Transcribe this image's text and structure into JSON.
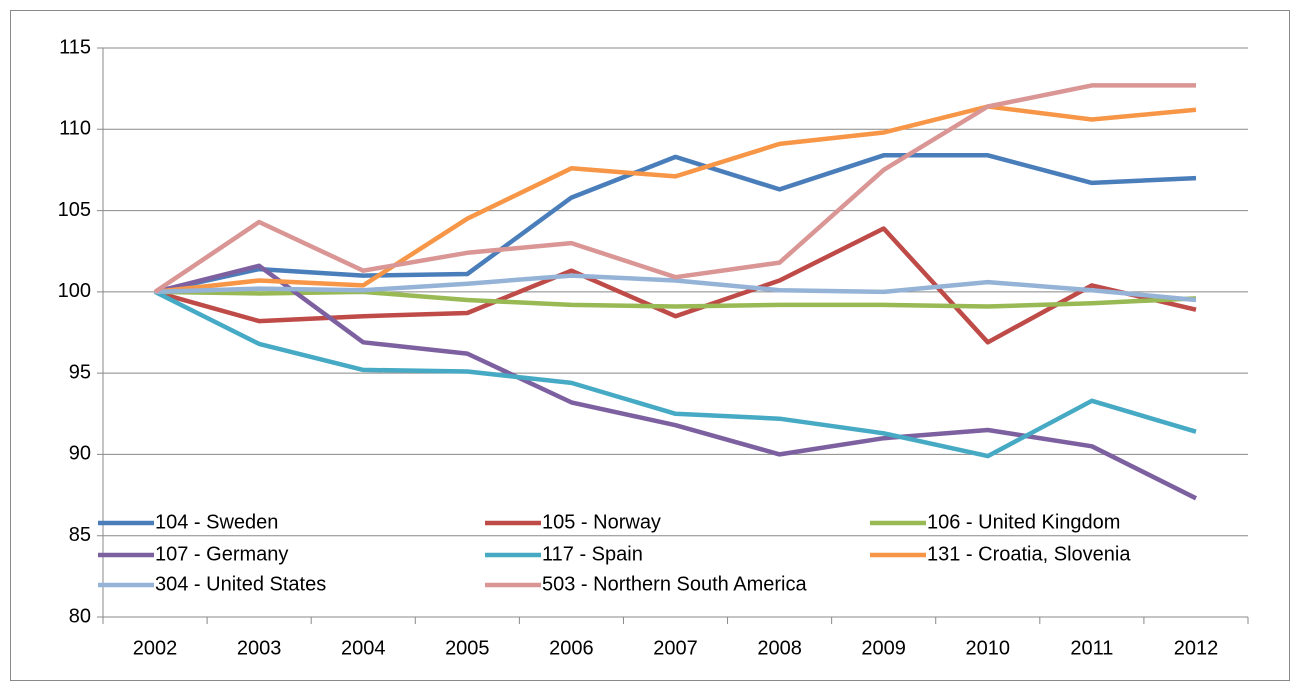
{
  "chart_data": {
    "type": "line",
    "categories": [
      "2002",
      "2003",
      "2004",
      "2005",
      "2006",
      "2007",
      "2008",
      "2009",
      "2010",
      "2011",
      "2012"
    ],
    "series": [
      {
        "name": "104 - Sweden",
        "color": "#4a7ebb",
        "values": [
          100,
          101.4,
          101.0,
          101.1,
          105.8,
          108.3,
          106.3,
          108.4,
          108.4,
          106.7,
          107.0
        ]
      },
      {
        "name": "105 - Norway",
        "color": "#be4b48",
        "values": [
          100,
          98.2,
          98.5,
          98.7,
          101.3,
          98.5,
          100.7,
          103.9,
          96.9,
          100.4,
          98.9
        ]
      },
      {
        "name": "106 - United Kingdom",
        "color": "#98b954",
        "values": [
          100,
          99.9,
          100.0,
          99.5,
          99.2,
          99.1,
          99.2,
          99.2,
          99.1,
          99.3,
          99.6
        ]
      },
      {
        "name": "107 - Germany",
        "color": "#7d60a0",
        "values": [
          100,
          101.6,
          96.9,
          96.2,
          93.2,
          91.8,
          90.0,
          91.0,
          91.5,
          90.5,
          87.3
        ]
      },
      {
        "name": "117 - Spain",
        "color": "#46aac5",
        "values": [
          100,
          96.8,
          95.2,
          95.1,
          94.4,
          92.5,
          92.2,
          91.3,
          89.9,
          93.3,
          91.4
        ]
      },
      {
        "name": "131 - Croatia, Slovenia",
        "color": "#f79646",
        "values": [
          100,
          100.7,
          100.4,
          104.5,
          107.6,
          107.1,
          109.1,
          109.8,
          111.4,
          110.6,
          111.2
        ]
      },
      {
        "name": "304 - United States",
        "color": "#95b3d7",
        "values": [
          100,
          100.2,
          100.1,
          100.5,
          101.0,
          100.7,
          100.1,
          100.0,
          100.6,
          100.1,
          99.5
        ]
      },
      {
        "name": "503 - Northern South America",
        "color": "#d99694",
        "values": [
          100,
          104.3,
          101.3,
          102.4,
          103.0,
          100.9,
          101.8,
          107.5,
          111.4,
          112.7,
          112.7
        ]
      }
    ],
    "ylim": [
      80,
      115
    ],
    "yticks": [
      80,
      85,
      90,
      95,
      100,
      105,
      110,
      115
    ],
    "grid": true
  }
}
